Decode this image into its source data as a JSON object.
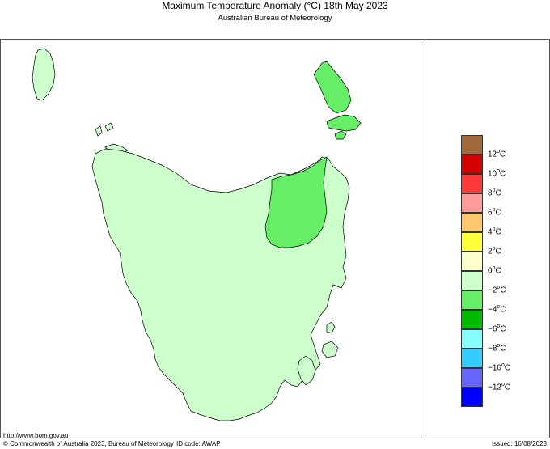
{
  "header": {
    "title": "Maximum Temperature Anomaly (°C)  18th May 2023",
    "subtitle": "Australian Bureau of Meteorology"
  },
  "legend": {
    "colors": [
      "#a06a3c",
      "#d40000",
      "#ff3a3a",
      "#ff9a9a",
      "#ffc870",
      "#ffff3a",
      "#ffffcc",
      "#ccffcc",
      "#66ee66",
      "#00bb00",
      "#88ffff",
      "#33ccff",
      "#6666ff",
      "#0000ff"
    ],
    "labels": [
      "12",
      "10",
      "8",
      "6",
      "4",
      "2",
      "0",
      "−2",
      "−4",
      "−6",
      "−8",
      "−10",
      "−12"
    ],
    "unit_suffix": "C"
  },
  "map": {
    "region": "Tasmania",
    "base_fill": "#ccffcc",
    "anomaly_fill": "#66ee66",
    "outline": "#000000"
  },
  "footer": {
    "url": "http://www.bom.gov.au",
    "copyright": "© Commonwealth of Australia 2023, Bureau of Meteorology",
    "id_code": "ID code: AWAP",
    "issued": "Issued: 16/08/2023"
  }
}
